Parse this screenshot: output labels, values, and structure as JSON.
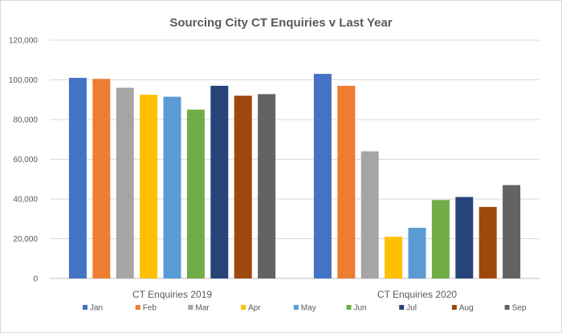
{
  "chart_data": {
    "type": "bar",
    "title": "Sourcing City CT Enquiries v Last Year",
    "categories": [
      "CT Enquiries 2019",
      "CT Enquiries 2020"
    ],
    "series": [
      {
        "name": "Jan",
        "color": "#4472c4",
        "values": [
          101000,
          103000
        ]
      },
      {
        "name": "Feb",
        "color": "#ed7d31",
        "values": [
          100500,
          97000
        ]
      },
      {
        "name": "Mar",
        "color": "#a5a5a5",
        "values": [
          96000,
          64000
        ]
      },
      {
        "name": "Apr",
        "color": "#ffc000",
        "values": [
          92500,
          21000
        ]
      },
      {
        "name": "May",
        "color": "#5b9bd5",
        "values": [
          91500,
          25500
        ]
      },
      {
        "name": "Jun",
        "color": "#70ad47",
        "values": [
          85000,
          39500
        ]
      },
      {
        "name": "Jul",
        "color": "#264478",
        "values": [
          97000,
          41000
        ]
      },
      {
        "name": "Aug",
        "color": "#9e480e",
        "values": [
          92000,
          36000
        ]
      },
      {
        "name": "Sep",
        "color": "#636363",
        "values": [
          92800,
          47000
        ]
      }
    ],
    "yticks": [
      "0",
      "20,000",
      "40,000",
      "60,000",
      "80,000",
      "100,000",
      "120,000"
    ],
    "ylim": [
      0,
      120000
    ],
    "grid": true,
    "legend_position": "bottom"
  }
}
